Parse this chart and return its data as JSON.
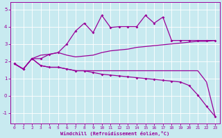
{
  "bg_color": "#c8eaf0",
  "line_color": "#990099",
  "grid_color": "#b0d8d8",
  "xlabel": "Windchill (Refroidissement éolien,°C)",
  "ylim": [
    -1.6,
    5.4
  ],
  "xlim": [
    -0.5,
    23.5
  ],
  "yticks": [
    -1,
    0,
    1,
    2,
    3,
    4,
    5
  ],
  "xticks": [
    0,
    1,
    2,
    3,
    4,
    5,
    6,
    7,
    8,
    9,
    10,
    11,
    12,
    13,
    14,
    15,
    16,
    17,
    18,
    19,
    20,
    21,
    22,
    23
  ],
  "line1_x": [
    0,
    1,
    2,
    3,
    4,
    5,
    6,
    7,
    8,
    9,
    10,
    11,
    12,
    13,
    14,
    15,
    16,
    17,
    18,
    19,
    20,
    21,
    22,
    23
  ],
  "line1_y": [
    1.85,
    1.55,
    2.15,
    2.15,
    2.4,
    2.5,
    3.0,
    3.75,
    4.2,
    3.65,
    4.65,
    3.95,
    4.0,
    4.0,
    4.0,
    4.65,
    4.2,
    4.55,
    3.2,
    3.2,
    3.2,
    3.2,
    3.2,
    3.2
  ],
  "line2_x": [
    0,
    1,
    2,
    3,
    4,
    5,
    6,
    7,
    8,
    9,
    10,
    11,
    12,
    13,
    14,
    15,
    16,
    17,
    18,
    19,
    20,
    21,
    22,
    23
  ],
  "line2_y": [
    1.85,
    1.55,
    2.15,
    2.35,
    2.4,
    2.5,
    2.35,
    2.25,
    2.3,
    2.35,
    2.5,
    2.6,
    2.65,
    2.7,
    2.8,
    2.85,
    2.9,
    2.95,
    3.0,
    3.05,
    3.1,
    3.15,
    3.15,
    3.2
  ],
  "line3_x": [
    0,
    1,
    2,
    3,
    4,
    5,
    6,
    7,
    8,
    9,
    10,
    11,
    12,
    13,
    14,
    15,
    16,
    17,
    18,
    19,
    20,
    21,
    22,
    23
  ],
  "line3_y": [
    1.85,
    1.55,
    2.15,
    1.75,
    1.65,
    1.65,
    1.55,
    1.45,
    1.45,
    1.45,
    1.45,
    1.45,
    1.45,
    1.45,
    1.45,
    1.45,
    1.45,
    1.45,
    1.45,
    1.45,
    1.45,
    1.45,
    0.8,
    -1.2
  ],
  "line4_x": [
    0,
    1,
    2,
    3,
    4,
    5,
    6,
    7,
    8,
    9,
    10,
    11,
    12,
    13,
    14,
    15,
    16,
    17,
    18,
    19,
    20,
    21,
    22,
    23
  ],
  "line4_y": [
    1.85,
    1.55,
    2.15,
    1.75,
    1.65,
    1.65,
    1.55,
    1.45,
    1.45,
    1.35,
    1.25,
    1.2,
    1.15,
    1.1,
    1.05,
    1.0,
    0.95,
    0.9,
    0.85,
    0.8,
    0.6,
    0.05,
    -0.6,
    -1.2
  ]
}
